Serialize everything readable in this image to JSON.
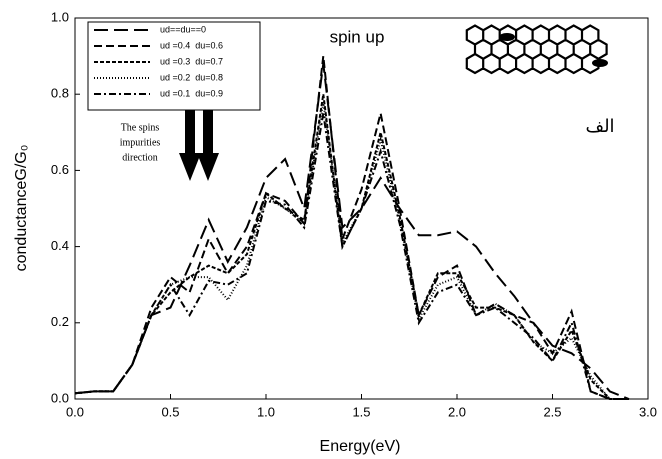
{
  "chart_data": {
    "type": "line",
    "x_label": "Energy(eV)",
    "y_label": "conductanceG/G₀",
    "annotations": {
      "spin": "spin up",
      "arrow_note": [
        "The spins",
        "impurities",
        "direction"
      ],
      "panel": "الف"
    },
    "x": [
      0,
      0.1,
      0.2,
      0.3,
      0.4,
      0.5,
      0.6,
      0.7,
      0.8,
      0.9,
      1.0,
      1.1,
      1.2,
      1.3,
      1.4,
      1.5,
      1.6,
      1.7,
      1.8,
      1.9,
      2.0,
      2.1,
      2.2,
      2.3,
      2.4,
      2.5,
      2.6,
      2.7,
      2.8,
      2.9
    ],
    "series": [
      {
        "name": "ud==du==0",
        "color": "#000000",
        "dash": "14,6",
        "values": [
          0.015,
          0.02,
          0.02,
          0.09,
          0.22,
          0.24,
          0.35,
          0.47,
          0.36,
          0.45,
          0.58,
          0.63,
          0.5,
          0.88,
          0.45,
          0.5,
          0.58,
          0.5,
          0.43,
          0.43,
          0.44,
          0.4,
          0.33,
          0.27,
          0.2,
          0.14,
          0.12,
          0.08,
          0.02,
          0
        ]
      },
      {
        "name": "ud =0.4  du=0.6",
        "color": "#000000",
        "dash": "8,4",
        "values": [
          0.015,
          0.02,
          0.02,
          0.09,
          0.24,
          0.32,
          0.28,
          0.42,
          0.33,
          0.4,
          0.54,
          0.52,
          0.46,
          0.9,
          0.42,
          0.55,
          0.75,
          0.5,
          0.22,
          0.32,
          0.35,
          0.22,
          0.25,
          0.22,
          0.2,
          0.12,
          0.23,
          0.02,
          0,
          0
        ]
      },
      {
        "name": "ud =0.3  du=0.7",
        "color": "#000000",
        "dash": "4,2",
        "values": [
          0.015,
          0.02,
          0.02,
          0.09,
          0.22,
          0.28,
          0.32,
          0.35,
          0.33,
          0.38,
          0.54,
          0.5,
          0.47,
          0.8,
          0.4,
          0.5,
          0.7,
          0.48,
          0.22,
          0.33,
          0.33,
          0.24,
          0.24,
          0.22,
          0.15,
          0.1,
          0.18,
          0.05,
          0,
          0
        ]
      },
      {
        "name": "ud =0.2  du=0.8",
        "color": "#000000",
        "dash": "1,2",
        "values": [
          0.015,
          0.02,
          0.02,
          0.09,
          0.22,
          0.3,
          0.32,
          0.32,
          0.26,
          0.35,
          0.53,
          0.5,
          0.46,
          0.78,
          0.41,
          0.5,
          0.68,
          0.47,
          0.21,
          0.3,
          0.32,
          0.22,
          0.25,
          0.22,
          0.15,
          0.12,
          0.16,
          0.06,
          0,
          0
        ]
      },
      {
        "name": "ud =0.1  du=0.9",
        "color": "#000000",
        "dash": "7,3,2,3",
        "values": [
          0.015,
          0.02,
          0.02,
          0.09,
          0.22,
          0.3,
          0.22,
          0.31,
          0.3,
          0.33,
          0.52,
          0.51,
          0.45,
          0.75,
          0.4,
          0.5,
          0.65,
          0.46,
          0.2,
          0.28,
          0.3,
          0.22,
          0.24,
          0.2,
          0.16,
          0.1,
          0.2,
          0.02,
          0,
          0
        ]
      }
    ],
    "xlim": [
      0,
      3
    ],
    "ylim": [
      0,
      1
    ],
    "xticks": [
      {
        "value": 0,
        "label": "0.0"
      },
      {
        "value": 0.5,
        "label": "0.5"
      },
      {
        "value": 1,
        "label": "1.0"
      },
      {
        "value": 1.5,
        "label": "1.5"
      },
      {
        "value": 2,
        "label": "2.0"
      },
      {
        "value": 2.5,
        "label": "2.5"
      },
      {
        "value": 3,
        "label": "3.0"
      }
    ],
    "yticks": [
      {
        "value": 0,
        "label": "0.0"
      },
      {
        "value": 0.2,
        "label": "0.2"
      },
      {
        "value": 0.4,
        "label": "0.4"
      },
      {
        "value": 0.6,
        "label": "0.6"
      },
      {
        "value": 0.8,
        "label": "0.8"
      },
      {
        "value": 1,
        "label": "1.0"
      }
    ],
    "grid": false,
    "legend": "upper left"
  }
}
